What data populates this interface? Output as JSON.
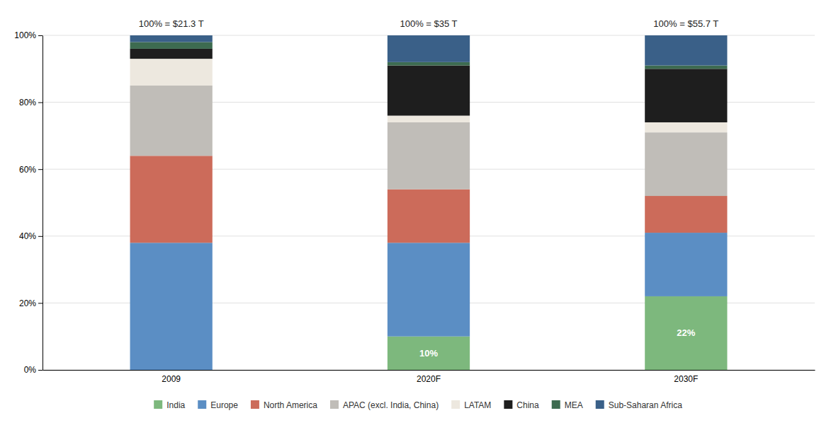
{
  "chart_data": {
    "type": "bar",
    "stacked": true,
    "categories": [
      "2009",
      "2020F",
      "2030F"
    ],
    "series": [
      {
        "name": "India",
        "color": "#7db87d",
        "values": [
          0,
          10,
          22
        ],
        "value_labels": [
          null,
          "10%",
          "22%"
        ]
      },
      {
        "name": "Europe",
        "color": "#5b8ec4",
        "values": [
          38,
          28,
          19
        ]
      },
      {
        "name": "North America",
        "color": "#cc6b5a",
        "values": [
          26,
          16,
          11
        ]
      },
      {
        "name": "APAC (excl. India, China)",
        "color": "#c0bdb8",
        "values": [
          21,
          20,
          19
        ]
      },
      {
        "name": "LATAM",
        "color": "#ede8df",
        "values": [
          8,
          2,
          3
        ]
      },
      {
        "name": "China",
        "color": "#1e1e1e",
        "values": [
          3,
          15,
          16
        ]
      },
      {
        "name": "MEA",
        "color": "#3d6b50",
        "values": [
          2,
          1,
          1
        ]
      },
      {
        "name": "Sub-Saharan Africa",
        "color": "#3a6088",
        "values": [
          2,
          8,
          9
        ]
      }
    ],
    "annotations": [
      {
        "x": "2009",
        "text": "100% = $21.3 T"
      },
      {
        "x": "2020F",
        "text": "100% = $35 T"
      },
      {
        "x": "2030F",
        "text": "100% = $55.7 T"
      }
    ],
    "ylim": [
      0,
      100
    ],
    "yticks": [
      {
        "value": 0,
        "label": "0%"
      },
      {
        "value": 20,
        "label": "20%"
      },
      {
        "value": 40,
        "label": "40%"
      },
      {
        "value": 60,
        "label": "60%"
      },
      {
        "value": 80,
        "label": "80%"
      },
      {
        "value": 100,
        "label": "100%"
      }
    ],
    "grid": true,
    "legend": "bottom"
  }
}
